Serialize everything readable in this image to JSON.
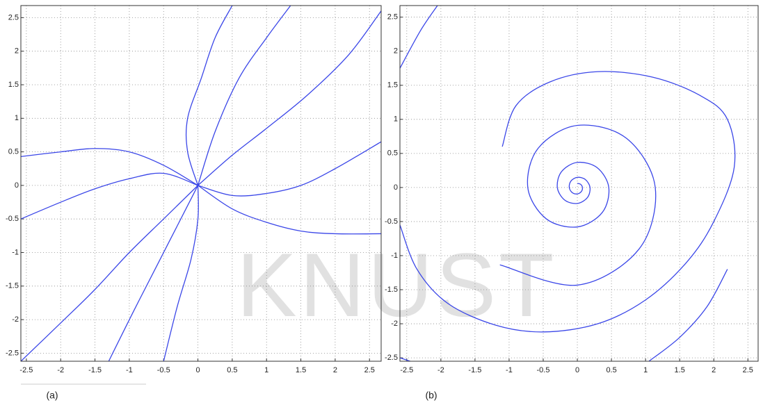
{
  "chart_data": [
    {
      "type": "line",
      "label": "(a)",
      "color": "#3a46e8",
      "grid": true,
      "xlim": [
        -2.58,
        2.67
      ],
      "ylim": [
        -2.62,
        2.68
      ],
      "xticks": [
        -2.5,
        -2,
        -1.5,
        -1,
        -0.5,
        0,
        0.5,
        1,
        1.5,
        2,
        2.5
      ],
      "yticks": [
        -2.5,
        -2,
        -1.5,
        -1,
        -0.5,
        0,
        0.5,
        1,
        1.5,
        2,
        2.5
      ],
      "series": [
        {
          "x": [
            0,
            -0.15,
            -0.15,
            0.05,
            0.25,
            0.5
          ],
          "values": [
            0,
            0.5,
            1,
            1.6,
            2.2,
            2.68
          ]
        },
        {
          "x": [
            0,
            0.25,
            0.6,
            1.0,
            1.35
          ],
          "values": [
            0,
            0.8,
            1.6,
            2.2,
            2.68
          ]
        },
        {
          "x": [
            0,
            0.5,
            1,
            1.6,
            2.2,
            2.67
          ],
          "values": [
            0,
            0.45,
            0.85,
            1.35,
            1.95,
            2.6
          ]
        },
        {
          "x": [
            0,
            0.5,
            1,
            1.5,
            2,
            2.67
          ],
          "values": [
            0,
            -0.15,
            -0.12,
            0,
            0.25,
            0.65
          ]
        },
        {
          "x": [
            0,
            0.5,
            1,
            1.5,
            2,
            2.67
          ],
          "values": [
            0,
            -0.35,
            -0.55,
            -0.68,
            -0.72,
            -0.72
          ]
        },
        {
          "x": [
            0,
            -0.5,
            -1,
            -1.5,
            -2,
            -2.58
          ],
          "values": [
            0,
            0.18,
            0.1,
            -0.05,
            -0.25,
            -0.5
          ]
        },
        {
          "x": [
            0,
            -0.5,
            -1,
            -1.5,
            -2,
            -2.58
          ],
          "values": [
            0,
            0.3,
            0.5,
            0.55,
            0.5,
            0.43
          ]
        },
        {
          "x": [
            0,
            -0.5,
            -1,
            -1.5,
            -2,
            -2.58
          ],
          "values": [
            0,
            -0.5,
            -1,
            -1.55,
            -2.05,
            -2.62
          ]
        },
        {
          "x": [
            0,
            -0.3,
            -0.6,
            -0.95,
            -1.3
          ],
          "values": [
            0,
            -0.6,
            -1.2,
            -1.9,
            -2.62
          ]
        },
        {
          "x": [
            0,
            0,
            -0.1,
            -0.3,
            -0.5
          ],
          "values": [
            0,
            -0.5,
            -1.1,
            -1.8,
            -2.62
          ]
        }
      ]
    },
    {
      "type": "line",
      "label": "(b)",
      "color": "#3a46e8",
      "grid": true,
      "xlim": [
        -2.6,
        2.65
      ],
      "ylim": [
        -2.55,
        2.67
      ],
      "xticks": [
        -2.5,
        -2,
        -1.5,
        -1,
        -0.5,
        0,
        0.5,
        1,
        1.5,
        2,
        2.5
      ],
      "yticks": [
        -2.5,
        -2,
        -1.5,
        -1,
        -0.5,
        0,
        0.5,
        1,
        1.5,
        2,
        2.5
      ],
      "series": [
        {
          "x": [
            0,
            0.047,
            0.075,
            0.059,
            0,
            -0.075,
            -0.118,
            -0.094,
            0,
            0.117,
            0.186,
            0.148,
            0,
            -0.185,
            -0.293,
            -0.232,
            0,
            0.291,
            0.461,
            0.366,
            0,
            -0.458,
            -0.726,
            -0.575,
            0,
            0.721,
            1.142,
            0.904,
            0,
            -1.135
          ],
          "values": [
            0.06,
            0.047,
            0,
            -0.059,
            -0.094,
            -0.075,
            0,
            0.094,
            0.149,
            0.117,
            0,
            -0.148,
            -0.234,
            -0.185,
            0,
            0.232,
            0.368,
            0.291,
            0,
            -0.366,
            -0.579,
            -0.458,
            0,
            0.575,
            0.911,
            0.721,
            0,
            -0.904,
            -1.433,
            -1.135
          ]
        },
        {
          "x": [
            -2.6,
            -2.35,
            -1.9,
            -1.2,
            -0.5,
            0.3,
            1.0,
            1.6,
            2.0,
            2.3,
            2.2,
            1.8,
            1.1,
            0.3,
            -0.4,
            -0.9,
            -1.1
          ],
          "values": [
            -0.55,
            -1.2,
            -1.7,
            -2.02,
            -2.12,
            -2.0,
            -1.65,
            -1.1,
            -0.5,
            0.3,
            1.0,
            1.35,
            1.62,
            1.7,
            1.55,
            1.2,
            0.6
          ]
        },
        {
          "x": [
            -2.6,
            -2.3,
            -2.05
          ],
          "values": [
            1.75,
            2.3,
            2.67
          ]
        },
        {
          "x": [
            -2.6,
            -2.45
          ],
          "values": [
            -2.5,
            -2.55
          ]
        },
        {
          "x": [
            1.05,
            1.5,
            1.9,
            2.2
          ],
          "values": [
            -2.55,
            -2.2,
            -1.75,
            -1.2
          ]
        }
      ]
    }
  ],
  "watermark": "KNUST"
}
